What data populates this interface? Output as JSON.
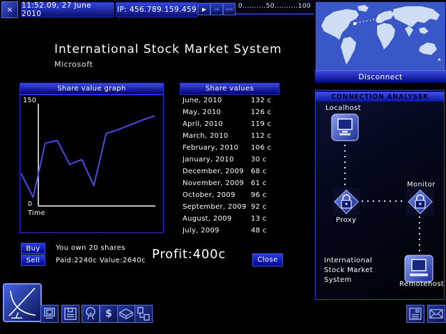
{
  "topbar": {
    "close_glyph": "✕",
    "time": "11:52.09, 27 June 2010",
    "ip": "IP: 456.789.159.459",
    "speed_buttons": [
      {
        "glyph": "▶"
      },
      {
        "glyph": "▶▶"
      },
      {
        "glyph": "▶▶▶"
      }
    ],
    "gauge_text": "0..........50..........100"
  },
  "worldmap": {
    "disconnect_label": "Disconnect"
  },
  "stock": {
    "title": "International Stock Market System",
    "subtitle": "Microsoft",
    "graph": {
      "header": "Share value graph",
      "y_max": "150",
      "y_min": "0",
      "x_label": "Time"
    },
    "values": {
      "header": "Share values",
      "rows": [
        {
          "month": "June, 2010",
          "value": "132 c"
        },
        {
          "month": "May, 2010",
          "value": "126 c"
        },
        {
          "month": "April, 2010",
          "value": "119 c"
        },
        {
          "month": "March, 2010",
          "value": "112 c"
        },
        {
          "month": "February, 2010",
          "value": "106 c"
        },
        {
          "month": "January, 2010",
          "value": "30 c"
        },
        {
          "month": "December, 2009",
          "value": "68 c"
        },
        {
          "month": "November, 2009",
          "value": "61 c"
        },
        {
          "month": "October, 2009",
          "value": "96 c"
        },
        {
          "month": "September, 2009",
          "value": "92 c"
        },
        {
          "month": "August, 2009",
          "value": "13 c"
        },
        {
          "month": "July, 2009",
          "value": "48 c"
        }
      ]
    },
    "trade": {
      "buy_label": "Buy",
      "sell_label": "Sell",
      "own_line1": "You own 20 shares",
      "own_line2": "Paid:2240c Value:2640c",
      "profit": "Profit:400c",
      "close_label": "Close"
    }
  },
  "analyser": {
    "header": "CONNECTION ANALYSER",
    "localhost_label": "Localhost",
    "proxy_label": "Proxy",
    "monitor_label": "Monitor",
    "remotehost_label": "Remotehost",
    "info_lines": [
      "International",
      "Stock Market",
      "System"
    ]
  },
  "taskbar": {
    "finance_glyph": "$"
  },
  "chart_data": {
    "type": "line",
    "title": "Share value graph",
    "xlabel": "Time",
    "ylabel": "",
    "ylim": [
      0,
      150
    ],
    "grid": false,
    "x": [
      "July, 2009",
      "August, 2009",
      "September, 2009",
      "October, 2009",
      "November, 2009",
      "December, 2009",
      "January, 2010",
      "February, 2010",
      "March, 2010",
      "April, 2010",
      "May, 2010",
      "June, 2010"
    ],
    "values": [
      48,
      13,
      92,
      96,
      61,
      68,
      30,
      106,
      112,
      119,
      126,
      132
    ],
    "line_color": "#4a4ae8"
  },
  "colors": {
    "accent": "#2334d0",
    "titlebar_top": "#3a4ae0",
    "titlebar_bottom": "#000078",
    "graph_line": "#4a4ae8",
    "map_ocean": "#3a57c8",
    "map_land": "#cfdef4"
  }
}
